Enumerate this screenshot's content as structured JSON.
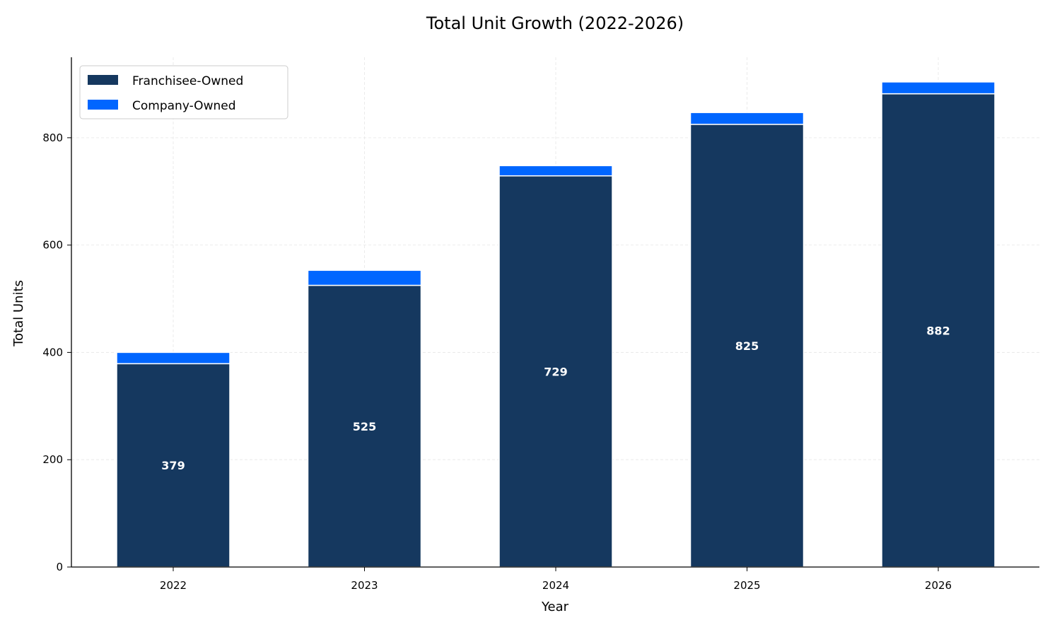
{
  "chart_data": {
    "type": "bar",
    "stacked": true,
    "title": "Total Unit Growth (2022-2026)",
    "xlabel": "Year",
    "ylabel": "Total Units",
    "categories": [
      "2022",
      "2023",
      "2024",
      "2025",
      "2026"
    ],
    "series": [
      {
        "name": "Franchisee-Owned",
        "color": "#15385f",
        "values": [
          379,
          525,
          729,
          825,
          882
        ],
        "labels": [
          "379",
          "525",
          "729",
          "825",
          "882"
        ]
      },
      {
        "name": "Company-Owned",
        "color": "#0066ff",
        "values": [
          21,
          28,
          19,
          22,
          22
        ]
      }
    ],
    "ylim": [
      0,
      950
    ],
    "yticks": [
      0,
      200,
      400,
      600,
      800
    ],
    "ytick_labels": [
      "0",
      "200",
      "400",
      "600",
      "800"
    ],
    "grid": true,
    "legend_position": "upper-left"
  }
}
